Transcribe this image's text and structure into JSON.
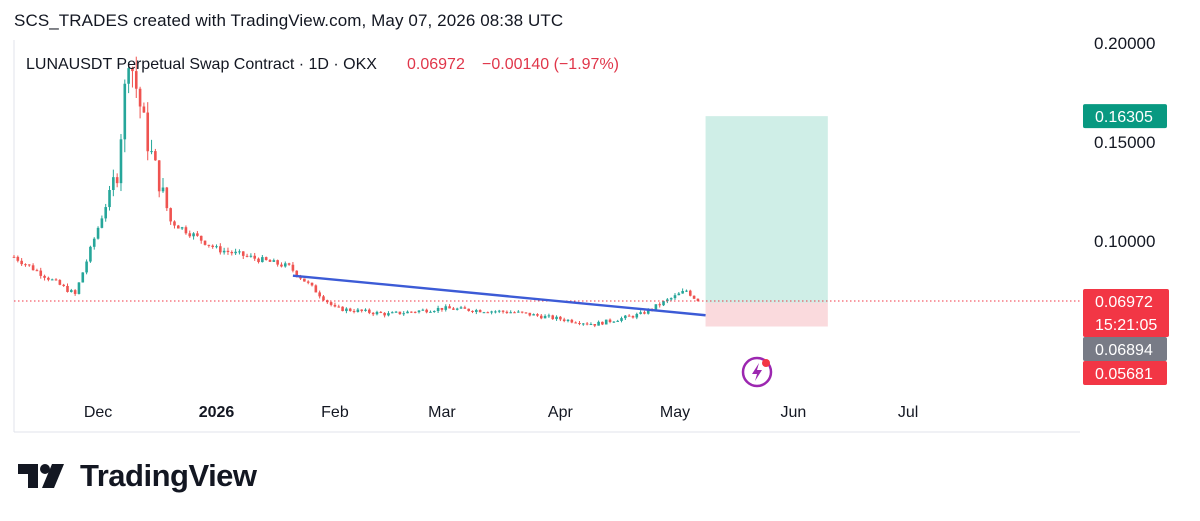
{
  "header": {
    "text": "SCS_TRADES created with TradingView.com, May 07, 2026 08:38 UTC"
  },
  "legend": {
    "symbol": "LUNAUSDT Perpetual Swap Contract · 1D · OKX",
    "last": "0.06972",
    "change": "−0.00140 (−1.97%)"
  },
  "brand": {
    "name": "TradingView"
  },
  "colors": {
    "up": "#26a69a",
    "down": "#ef5350",
    "trendline": "#3c5bd6",
    "target_zone": "#cfeee7",
    "stop_zone": "#fadadd",
    "target_label": "#089981",
    "last_label": "#f23645",
    "stop_label": "#f23645",
    "entry_label": "#787b86"
  },
  "price_labels": {
    "target": "0.16305",
    "last": "0.06972",
    "countdown": "15:21:05",
    "entry": "0.06894",
    "stop": "0.05681"
  },
  "icons": {
    "brand_logo": "tradingview-logo-icon",
    "event_marker": "lightning-bolt-icon"
  },
  "chart_data": {
    "type": "candlestick",
    "y_axis": {
      "ticks": [
        "0.20000",
        "0.15000",
        "0.10000"
      ],
      "tick_values": [
        0.2,
        0.15,
        0.1
      ],
      "range": [
        0.03,
        0.205
      ]
    },
    "x_axis": {
      "ticks": [
        "Dec",
        "2026",
        "Feb",
        "Mar",
        "Apr",
        "May",
        "Jun",
        "Jul"
      ],
      "tick_dates": [
        "2025-12-01",
        "2026-01-01",
        "2026-02-01",
        "2026-03-01",
        "2026-04-01",
        "2026-05-01",
        "2026-06-01",
        "2026-07-01"
      ],
      "range": [
        "2025-11-09",
        "2026-08-15"
      ]
    },
    "key_points": [
      {
        "date": "2025-11-09",
        "close": 0.092
      },
      {
        "date": "2025-11-25",
        "close": 0.073
      },
      {
        "date": "2025-12-06",
        "close": 0.135
      },
      {
        "date": "2025-12-09",
        "close": 0.196
      },
      {
        "date": "2025-12-14",
        "close": 0.15
      },
      {
        "date": "2025-12-20",
        "close": 0.11
      },
      {
        "date": "2026-01-01",
        "close": 0.096
      },
      {
        "date": "2026-01-20",
        "close": 0.087
      },
      {
        "date": "2026-02-01",
        "close": 0.066
      },
      {
        "date": "2026-02-15",
        "close": 0.063
      },
      {
        "date": "2026-03-01",
        "close": 0.066
      },
      {
        "date": "2026-03-20",
        "close": 0.064
      },
      {
        "date": "2026-04-10",
        "close": 0.058
      },
      {
        "date": "2026-04-22",
        "close": 0.063
      },
      {
        "date": "2026-05-04",
        "close": 0.075
      },
      {
        "date": "2026-05-07",
        "close": 0.06972
      }
    ],
    "trendline": {
      "from": {
        "date": "2026-01-21",
        "price": 0.0825
      },
      "to": {
        "date": "2026-05-09",
        "price": 0.0625
      }
    },
    "position": {
      "type": "long",
      "entry": 0.06894,
      "target": 0.16305,
      "stop": 0.05681,
      "start_date": "2026-05-09",
      "end_date": "2026-06-10"
    },
    "last_price": 0.06972
  }
}
